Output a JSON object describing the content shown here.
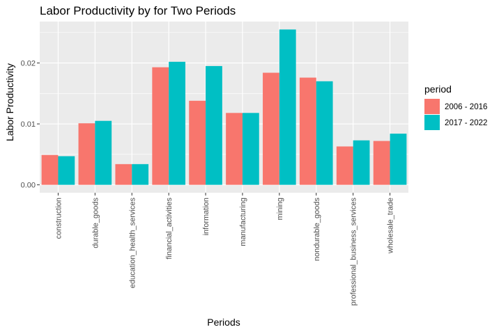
{
  "chart_data": {
    "type": "bar",
    "title": "Labor Productivity by for Two Periods",
    "xlabel": "Periods",
    "ylabel": "Labor Productivity",
    "categories": [
      "construction",
      "durable_goods",
      "education_health_services",
      "financial_activities",
      "information",
      "manufacturing",
      "mining",
      "nondurable_goods",
      "professional_business_services",
      "wholesale_trade"
    ],
    "series": [
      {
        "name": "2006 - 2016",
        "color": "#F8766D",
        "values": [
          0.0049,
          0.0101,
          0.0034,
          0.0193,
          0.0138,
          0.0118,
          0.0184,
          0.0176,
          0.0063,
          0.0072
        ]
      },
      {
        "name": "2017 - 2022",
        "color": "#00BFC4",
        "values": [
          0.0047,
          0.0105,
          0.0034,
          0.0202,
          0.0195,
          0.0118,
          0.0255,
          0.017,
          0.0073,
          0.0084
        ]
      }
    ],
    "ylim": [
      -0.0013,
      0.0268
    ],
    "yticks": [
      0.0,
      0.01,
      0.02
    ],
    "ytick_labels": [
      "0.00",
      "0.01",
      "0.02"
    ],
    "legend": {
      "title": "period",
      "placement": "right"
    },
    "grid": true,
    "panel_background": "#EBEBEB",
    "gridline_color": "#FFFFFF"
  }
}
